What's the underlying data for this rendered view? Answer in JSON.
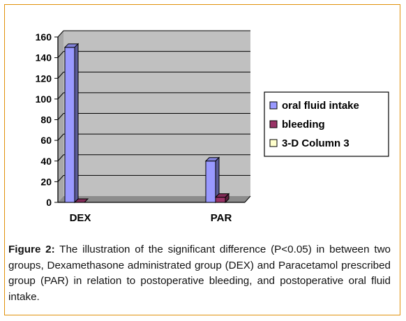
{
  "chart_data": {
    "type": "bar",
    "categories": [
      "DEX",
      "PAR"
    ],
    "series": [
      {
        "name": "oral fluid intake",
        "values": [
          150,
          40
        ],
        "color": "#9999ff"
      },
      {
        "name": "bleeding",
        "values": [
          0,
          5
        ],
        "color": "#993366"
      },
      {
        "name": "3-D Column 3",
        "values": [
          0,
          0
        ],
        "color": "#ffffcc"
      }
    ],
    "ylim": [
      0,
      160
    ],
    "yticks": [
      "0",
      "20",
      "40",
      "60",
      "80",
      "100",
      "120",
      "140",
      "160"
    ],
    "grid": true,
    "legend_position": "right",
    "plot_background": "#c0c0c0"
  },
  "caption": {
    "label": "Figure 2:",
    "text": " The illustration of the significant difference (P<0.05) in between two groups, Dexamethasone administrated group (DEX) and Paracetamol prescribed group (PAR) in relation to postoperative bleeding, and postoperative oral fluid intake."
  }
}
